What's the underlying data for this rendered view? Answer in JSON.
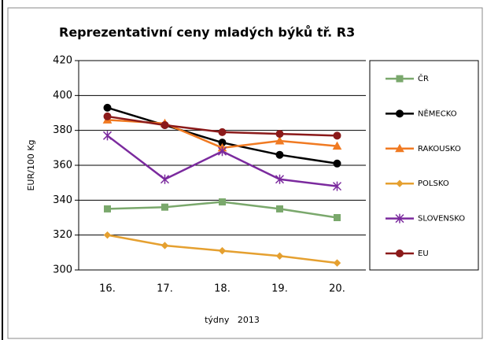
{
  "chart_data": {
    "type": "line",
    "title": "Reprezentativní ceny mladých býků tř. R3",
    "y_label": "EUR/100 Kg",
    "x_label": "týdny   2013",
    "categories": [
      "16.",
      "17.",
      "18.",
      "19.",
      "20."
    ],
    "ylim": [
      300,
      420
    ],
    "yticks": [
      300,
      320,
      340,
      360,
      380,
      400,
      420
    ],
    "grid": true,
    "legend": "right",
    "series": [
      {
        "name": "ČR",
        "color": "#7aa86c",
        "marker": "square",
        "values": [
          335,
          336,
          339,
          335,
          330
        ]
      },
      {
        "name": "NĚMECKO",
        "color": "#000000",
        "marker": "circle",
        "values": [
          393,
          383,
          373,
          366,
          361
        ]
      },
      {
        "name": "RAKOUSKO",
        "color": "#f07a22",
        "marker": "triangle",
        "values": [
          386,
          384,
          370,
          374,
          371
        ]
      },
      {
        "name": "POLSKO",
        "color": "#e5a030",
        "marker": "diamond",
        "values": [
          320,
          314,
          311,
          308,
          304
        ]
      },
      {
        "name": "SLOVENSKO",
        "color": "#7b2a9e",
        "marker": "star",
        "values": [
          377,
          352,
          368,
          352,
          348
        ]
      },
      {
        "name": "EU",
        "color": "#8b1a1a",
        "marker": "circle",
        "values": [
          388,
          383,
          379,
          378,
          377
        ]
      }
    ]
  }
}
